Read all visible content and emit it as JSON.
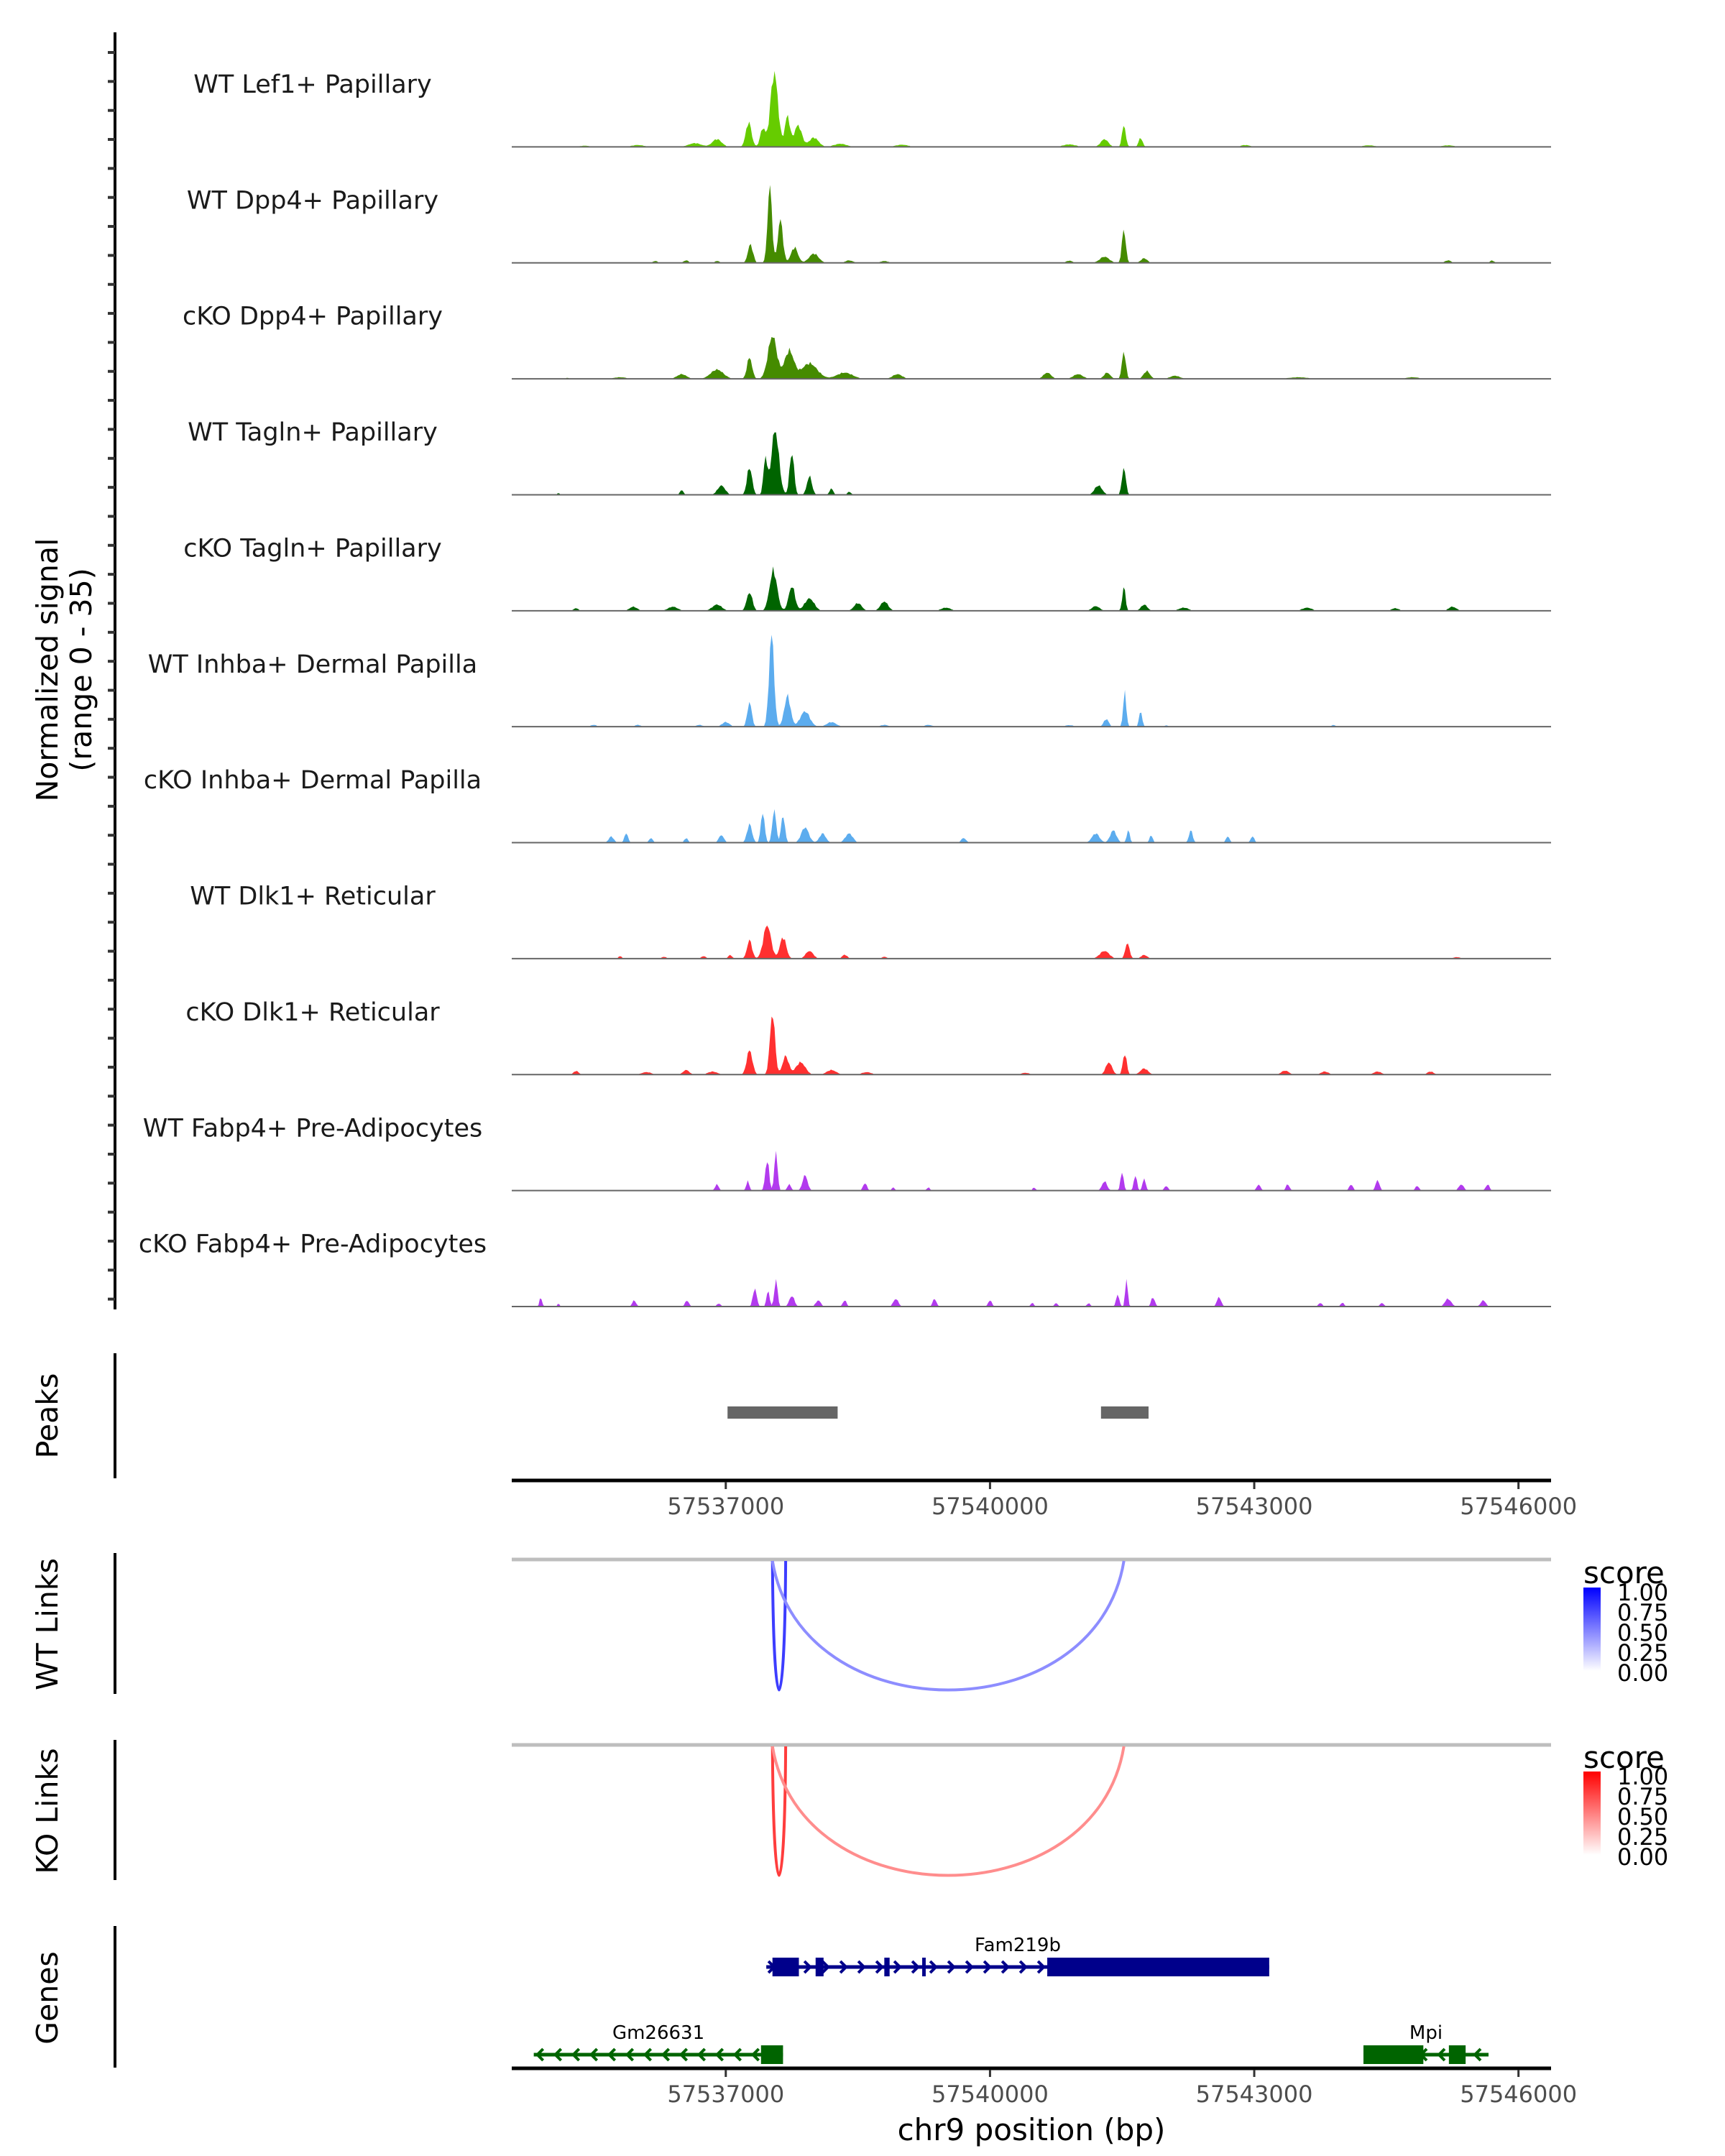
{
  "chart_data": {
    "type": "area",
    "title": "",
    "region": {
      "chrom": "chr9",
      "start": 57534570,
      "end": 57546370
    },
    "xlabel": "chr9 position (bp)",
    "xticks": [
      57537000,
      57540000,
      57543000,
      57546000
    ],
    "xtick_labels": [
      "57537000",
      "57540000",
      "57543000",
      "57546000"
    ],
    "signal_ylabel_line1": "Normalized signal",
    "signal_ylabel_line2": "(range 0 - 35)",
    "ylim": [
      0,
      35
    ],
    "tracks": [
      {
        "name": "WT Lef1+ Papillary",
        "color": "#66CC00",
        "peaks": [
          [
            57535400,
            150,
            0.4
          ],
          [
            57536000,
            200,
            0.6
          ],
          [
            57536650,
            200,
            1.2
          ],
          [
            57536900,
            150,
            2.5
          ],
          [
            57537260,
            90,
            8
          ],
          [
            57537420,
            80,
            6
          ],
          [
            57537550,
            120,
            24
          ],
          [
            57537700,
            80,
            10
          ],
          [
            57537820,
            120,
            7
          ],
          [
            57538000,
            150,
            3
          ],
          [
            57538300,
            200,
            1
          ],
          [
            57539000,
            200,
            0.7
          ],
          [
            57540900,
            200,
            0.8
          ],
          [
            57541300,
            120,
            2.5
          ],
          [
            57541520,
            60,
            7
          ],
          [
            57541710,
            60,
            3
          ],
          [
            57542900,
            150,
            0.6
          ],
          [
            57544300,
            200,
            0.5
          ],
          [
            57545200,
            200,
            0.5
          ]
        ]
      },
      {
        "name": "WT Dpp4+ Papillary",
        "color": "#458B00",
        "peaks": [
          [
            57536200,
            80,
            0.6
          ],
          [
            57536550,
            80,
            0.8
          ],
          [
            57536900,
            80,
            0.6
          ],
          [
            57537280,
            80,
            6
          ],
          [
            57537500,
            70,
            25
          ],
          [
            57537620,
            80,
            14
          ],
          [
            57537780,
            110,
            5
          ],
          [
            57538000,
            150,
            3
          ],
          [
            57538400,
            120,
            0.8
          ],
          [
            57538800,
            120,
            0.6
          ],
          [
            57540900,
            100,
            0.7
          ],
          [
            57541300,
            150,
            2
          ],
          [
            57541520,
            60,
            11
          ],
          [
            57541750,
            100,
            1.5
          ],
          [
            57545200,
            100,
            0.8
          ],
          [
            57545700,
            60,
            0.8
          ]
        ]
      },
      {
        "name": "cKO Dpp4+ Papillary",
        "color": "#458B00",
        "peaks": [
          [
            57535200,
            80,
            0.3
          ],
          [
            57535800,
            200,
            0.5
          ],
          [
            57536500,
            150,
            1.5
          ],
          [
            57536900,
            200,
            3
          ],
          [
            57537270,
            80,
            7
          ],
          [
            57537530,
            140,
            14
          ],
          [
            57537720,
            150,
            9
          ],
          [
            57537950,
            250,
            5
          ],
          [
            57538350,
            250,
            2
          ],
          [
            57538950,
            150,
            1.5
          ],
          [
            57540650,
            120,
            2
          ],
          [
            57541000,
            150,
            1.5
          ],
          [
            57541330,
            100,
            2
          ],
          [
            57541520,
            60,
            9
          ],
          [
            57541780,
            100,
            2.5
          ],
          [
            57542100,
            150,
            1
          ],
          [
            57543500,
            300,
            0.5
          ],
          [
            57544800,
            200,
            0.5
          ]
        ]
      },
      {
        "name": "WT Tagln+ Papillary",
        "color": "#006400",
        "peaks": [
          [
            57535100,
            40,
            0.6
          ],
          [
            57536500,
            60,
            1.5
          ],
          [
            57536950,
            120,
            3
          ],
          [
            57537270,
            80,
            9
          ],
          [
            57537450,
            60,
            12
          ],
          [
            57537560,
            120,
            21
          ],
          [
            57537750,
            70,
            14
          ],
          [
            57537950,
            80,
            6
          ],
          [
            57538200,
            60,
            2
          ],
          [
            57538400,
            60,
            1
          ],
          [
            57541230,
            120,
            3
          ],
          [
            57541520,
            60,
            9
          ]
        ]
      },
      {
        "name": "cKO Tagln+ Papillary",
        "color": "#006400",
        "peaks": [
          [
            57535300,
            80,
            0.8
          ],
          [
            57535950,
            120,
            1.3
          ],
          [
            57536400,
            150,
            1.3
          ],
          [
            57536900,
            150,
            2
          ],
          [
            57537270,
            90,
            6
          ],
          [
            57537540,
            120,
            13
          ],
          [
            57537750,
            100,
            8
          ],
          [
            57537950,
            150,
            4
          ],
          [
            57538500,
            120,
            2.5
          ],
          [
            57538800,
            120,
            3
          ],
          [
            57539500,
            150,
            1
          ],
          [
            57541200,
            120,
            1.5
          ],
          [
            57541520,
            50,
            8
          ],
          [
            57541750,
            100,
            2
          ],
          [
            57542200,
            150,
            1
          ],
          [
            57543600,
            150,
            1
          ],
          [
            57544600,
            120,
            0.8
          ],
          [
            57545250,
            120,
            1.3
          ]
        ]
      },
      {
        "name": "WT Inhba+ Dermal Papilla",
        "color": "#5CACEE",
        "peaks": [
          [
            57535500,
            100,
            0.6
          ],
          [
            57536000,
            100,
            0.6
          ],
          [
            57536700,
            100,
            0.6
          ],
          [
            57537000,
            120,
            1.5
          ],
          [
            57537270,
            70,
            8
          ],
          [
            57537520,
            80,
            30
          ],
          [
            57537700,
            100,
            10
          ],
          [
            57537900,
            150,
            5
          ],
          [
            57538200,
            150,
            1.5
          ],
          [
            57538800,
            120,
            0.6
          ],
          [
            57539300,
            120,
            0.6
          ],
          [
            57540900,
            150,
            0.5
          ],
          [
            57541320,
            80,
            2.5
          ],
          [
            57541530,
            50,
            11
          ],
          [
            57541710,
            50,
            5
          ],
          [
            57542000,
            80,
            0.4
          ],
          [
            57543900,
            60,
            0.6
          ]
        ]
      },
      {
        "name": "cKO Inhba+ Dermal Papilla",
        "color": "#5CACEE",
        "peaks": [
          [
            57535700,
            80,
            2
          ],
          [
            57535870,
            60,
            3
          ],
          [
            57536150,
            60,
            1.5
          ],
          [
            57536550,
            60,
            1.5
          ],
          [
            57536950,
            80,
            2.5
          ],
          [
            57537270,
            80,
            6
          ],
          [
            57537420,
            60,
            10
          ],
          [
            57537550,
            60,
            11
          ],
          [
            57537650,
            60,
            9
          ],
          [
            57537900,
            120,
            5
          ],
          [
            57538100,
            100,
            3
          ],
          [
            57538400,
            120,
            3
          ],
          [
            57539700,
            80,
            1.5
          ],
          [
            57541200,
            120,
            3
          ],
          [
            57541400,
            100,
            4
          ],
          [
            57541570,
            50,
            4
          ],
          [
            57541830,
            50,
            2.5
          ],
          [
            57542280,
            60,
            4
          ],
          [
            57542700,
            60,
            2
          ],
          [
            57542980,
            60,
            2
          ]
        ]
      },
      {
        "name": "WT Dlk1+ Reticular",
        "color": "#FF3030",
        "peaks": [
          [
            57535800,
            60,
            0.8
          ],
          [
            57536300,
            80,
            0.6
          ],
          [
            57536750,
            80,
            0.8
          ],
          [
            57537050,
            60,
            1.2
          ],
          [
            57537270,
            80,
            6
          ],
          [
            57537470,
            120,
            11
          ],
          [
            57537650,
            100,
            7
          ],
          [
            57537950,
            120,
            2.5
          ],
          [
            57538350,
            80,
            1.3
          ],
          [
            57538800,
            80,
            0.6
          ],
          [
            57541300,
            150,
            2.5
          ],
          [
            57541560,
            70,
            5
          ],
          [
            57541750,
            100,
            1.2
          ],
          [
            57545300,
            100,
            0.5
          ]
        ]
      },
      {
        "name": "cKO Dlk1+ Reticular",
        "color": "#FF3030",
        "peaks": [
          [
            57535300,
            80,
            1.2
          ],
          [
            57536100,
            150,
            0.8
          ],
          [
            57536550,
            100,
            1.5
          ],
          [
            57536850,
            150,
            1
          ],
          [
            57537270,
            90,
            8
          ],
          [
            57537530,
            80,
            20
          ],
          [
            57537680,
            100,
            6
          ],
          [
            57537850,
            150,
            4
          ],
          [
            57538200,
            150,
            1.5
          ],
          [
            57538600,
            150,
            0.8
          ],
          [
            57540400,
            120,
            0.6
          ],
          [
            57541350,
            100,
            4
          ],
          [
            57541530,
            60,
            7
          ],
          [
            57541750,
            120,
            2
          ],
          [
            57543350,
            120,
            1.3
          ],
          [
            57543800,
            120,
            1
          ],
          [
            57544400,
            120,
            1
          ],
          [
            57545000,
            100,
            1
          ]
        ]
      },
      {
        "name": "WT Fabp4+ Pre-Adipocytes",
        "color": "#B23AEE",
        "peaks": [
          [
            57536900,
            60,
            2
          ],
          [
            57537250,
            50,
            3
          ],
          [
            57537470,
            60,
            10
          ],
          [
            57537570,
            50,
            13
          ],
          [
            57537720,
            60,
            2
          ],
          [
            57537900,
            80,
            5
          ],
          [
            57538580,
            60,
            2.5
          ],
          [
            57538900,
            50,
            1
          ],
          [
            57539300,
            50,
            1
          ],
          [
            57540500,
            50,
            1
          ],
          [
            57541300,
            80,
            3
          ],
          [
            57541500,
            50,
            6
          ],
          [
            57541650,
            50,
            5
          ],
          [
            57541750,
            50,
            4
          ],
          [
            57542000,
            60,
            1.5
          ],
          [
            57543050,
            60,
            2
          ],
          [
            57543380,
            60,
            2
          ],
          [
            57544100,
            60,
            2
          ],
          [
            57544400,
            60,
            3.5
          ],
          [
            57544850,
            60,
            1.5
          ],
          [
            57545350,
            80,
            2
          ],
          [
            57545650,
            60,
            2
          ]
        ]
      },
      {
        "name": "cKO Fabp4+ Pre-Adipocytes",
        "color": "#B23AEE",
        "peaks": [
          [
            57534900,
            40,
            3
          ],
          [
            57535100,
            40,
            1
          ],
          [
            57535960,
            60,
            2
          ],
          [
            57536560,
            60,
            2
          ],
          [
            57536920,
            60,
            1
          ],
          [
            57537330,
            60,
            6
          ],
          [
            57537480,
            50,
            5
          ],
          [
            57537570,
            50,
            9
          ],
          [
            57537750,
            80,
            3.5
          ],
          [
            57538050,
            80,
            2
          ],
          [
            57538350,
            60,
            2
          ],
          [
            57538930,
            80,
            2.5
          ],
          [
            57539370,
            60,
            2.5
          ],
          [
            57540000,
            60,
            2
          ],
          [
            57540480,
            50,
            1.2
          ],
          [
            57540750,
            50,
            1.2
          ],
          [
            57541120,
            60,
            1
          ],
          [
            57541450,
            50,
            4
          ],
          [
            57541550,
            40,
            9
          ],
          [
            57541850,
            60,
            3
          ],
          [
            57542600,
            70,
            3
          ],
          [
            57543750,
            60,
            1.2
          ],
          [
            57544000,
            60,
            1.2
          ],
          [
            57544450,
            60,
            1.2
          ],
          [
            57545200,
            100,
            2.5
          ],
          [
            57545600,
            80,
            2
          ]
        ]
      }
    ],
    "peaks_track": {
      "label": "Peaks",
      "color": "#666666",
      "regions": [
        [
          57537020,
          57538270
        ],
        [
          57541260,
          57541800
        ]
      ]
    },
    "link_tracks": [
      {
        "label": "WT Links",
        "legend_title": "score",
        "low_color": "#FFFFFF",
        "high_color": "#0000FF",
        "links": [
          {
            "start": 57537530,
            "end": 57537680,
            "score": 0.72
          },
          {
            "start": 57537530,
            "end": 57541520,
            "score": 0.35
          }
        ]
      },
      {
        "label": "KO Links",
        "legend_title": "score",
        "low_color": "#FFFFFF",
        "high_color": "#FF0000",
        "links": [
          {
            "start": 57537530,
            "end": 57537680,
            "score": 0.72
          },
          {
            "start": 57537530,
            "end": 57541520,
            "score": 0.35
          }
        ]
      }
    ],
    "legend_ticks": [
      "1.00",
      "0.75",
      "0.50",
      "0.25",
      "0.00"
    ],
    "genes_track": {
      "label": "Genes",
      "genes": [
        {
          "name": "Fam219b",
          "strand": "+",
          "color": "#00008B",
          "row": 0,
          "start": 57537460,
          "end": 57543170,
          "exons": [
            [
              57537530,
              57537830
            ],
            [
              57538020,
              57538110
            ],
            [
              57538800,
              57538860
            ],
            [
              57539230,
              57539270
            ],
            [
              57540650,
              57543170
            ]
          ]
        },
        {
          "name": "Gm26631",
          "strand": "-",
          "color": "#006400",
          "row": 1,
          "start": 57534820,
          "end": 57537650,
          "exons": [
            [
              57537400,
              57537650
            ]
          ]
        },
        {
          "name": "Mpi",
          "strand": "-",
          "color": "#006400",
          "row": 1,
          "start": 57544240,
          "end": 57545660,
          "exons": [
            [
              57544240,
              57544920
            ],
            [
              57545210,
              57545400
            ]
          ]
        }
      ]
    }
  }
}
